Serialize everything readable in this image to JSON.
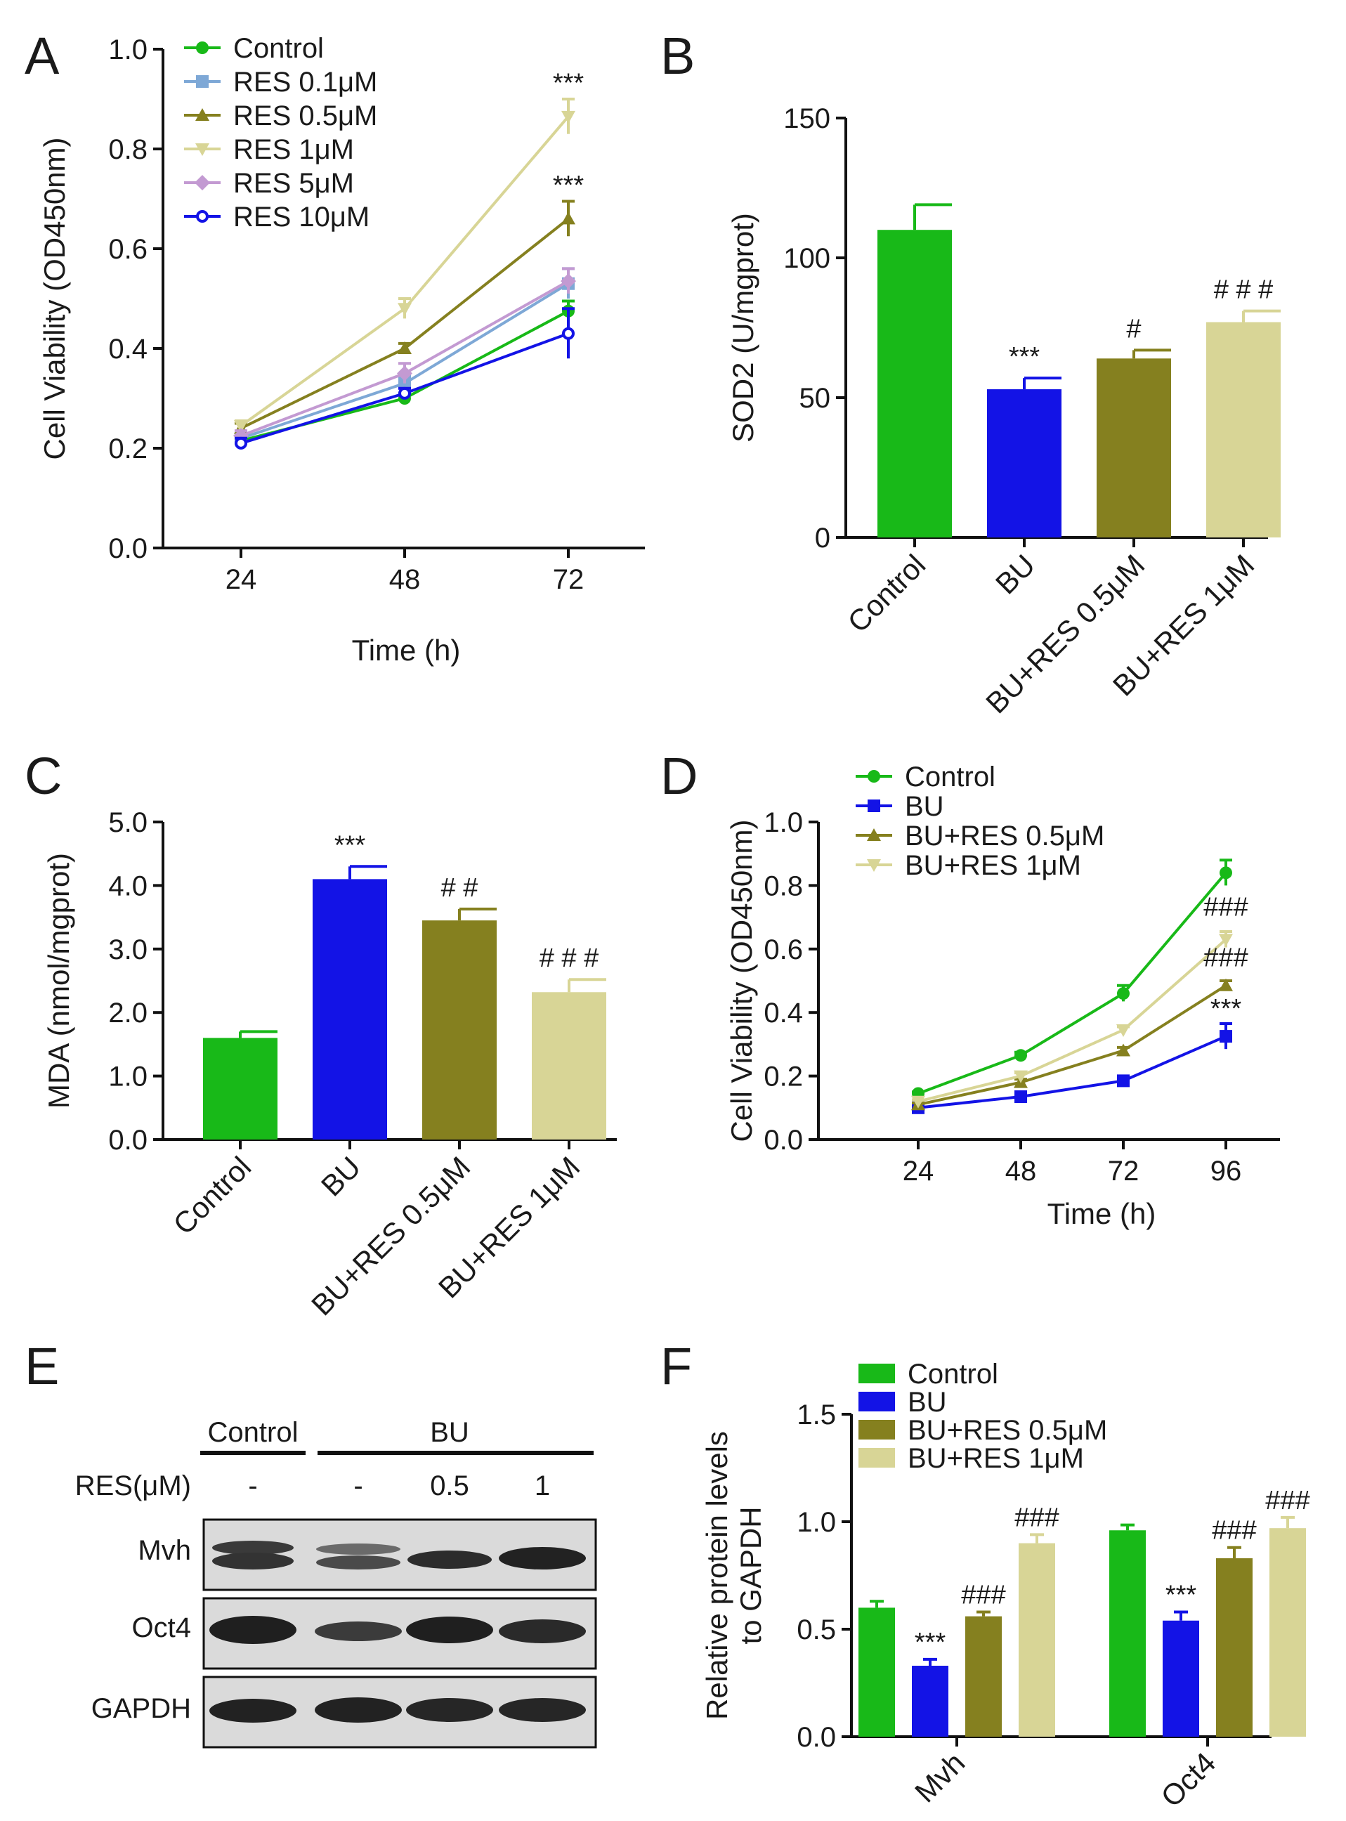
{
  "panels": {
    "A": "A",
    "B": "B",
    "C": "C",
    "D": "D",
    "E": "E",
    "F": "F"
  },
  "colors": {
    "green": "#18b918",
    "blue": "#1313e6",
    "olive": "#85801f",
    "khaki": "#d8d596",
    "steel": "#7ea8d6",
    "lilac": "#c39ad2"
  },
  "chart_data": [
    {
      "id": "A",
      "type": "line",
      "xlabel": "Time (h)",
      "ylabel": "Cell Viability (OD450nm)",
      "x": [
        24,
        48,
        72
      ],
      "ylim": [
        0.0,
        1.0
      ],
      "yticks": [
        "0.0",
        "0.2",
        "0.4",
        "0.6",
        "0.8",
        "1.0"
      ],
      "series": [
        {
          "name": "Control",
          "marker": "circle",
          "color": "#18b918",
          "values": [
            0.215,
            0.3,
            0.475
          ],
          "err": [
            0.01,
            0.01,
            0.02
          ]
        },
        {
          "name": "RES 0.1μM",
          "marker": "square",
          "color": "#7ea8d6",
          "values": [
            0.22,
            0.33,
            0.53
          ],
          "err": [
            0.01,
            0.015,
            0.03
          ]
        },
        {
          "name": "RES 0.5μM",
          "marker": "triangle-up",
          "color": "#85801f",
          "values": [
            0.24,
            0.4,
            0.66
          ],
          "err": [
            0.01,
            0.01,
            0.035
          ]
        },
        {
          "name": "RES 1μM",
          "marker": "triangle-down",
          "color": "#d8d596",
          "values": [
            0.245,
            0.48,
            0.865
          ],
          "err": [
            0.01,
            0.02,
            0.035
          ]
        },
        {
          "name": "RES 5μM",
          "marker": "diamond",
          "color": "#c39ad2",
          "values": [
            0.225,
            0.35,
            0.535
          ],
          "err": [
            0.01,
            0.02,
            0.025
          ]
        },
        {
          "name": "RES 10μM",
          "marker": "open-circle",
          "color": "#1313e6",
          "values": [
            0.21,
            0.31,
            0.43
          ],
          "err": [
            0.01,
            0.01,
            0.05
          ]
        }
      ],
      "annotations": [
        {
          "text": "***",
          "x": 72,
          "y": 0.915
        },
        {
          "text": "***",
          "x": 72,
          "y": 0.71
        }
      ]
    },
    {
      "id": "B",
      "type": "bar",
      "ylabel": "SOD2 (U/mgprot)",
      "categories": [
        "Control",
        "BU",
        "BU+RES 0.5μM",
        "BU+RES 1μM"
      ],
      "values": [
        110,
        53,
        64,
        77
      ],
      "err": [
        9,
        4,
        3,
        4
      ],
      "colors": [
        "#18b918",
        "#1313e6",
        "#85801f",
        "#d8d596"
      ],
      "ylim": [
        0,
        150
      ],
      "yticks": [
        "0",
        "50",
        "100",
        "150"
      ],
      "annotations": [
        "",
        "***",
        "#",
        "# # #"
      ]
    },
    {
      "id": "C",
      "type": "bar",
      "ylabel": "MDA (nmol/mgprot)",
      "categories": [
        "Control",
        "BU",
        "BU+RES 0.5μM",
        "BU+RES 1μM"
      ],
      "values": [
        1.6,
        4.1,
        3.45,
        2.32
      ],
      "err": [
        0.1,
        0.2,
        0.18,
        0.2
      ],
      "colors": [
        "#18b918",
        "#1313e6",
        "#85801f",
        "#d8d596"
      ],
      "ylim": [
        0,
        5
      ],
      "yticks": [
        "0.0",
        "1.0",
        "2.0",
        "3.0",
        "4.0",
        "5.0"
      ],
      "annotations": [
        "",
        "***",
        "# #",
        "# # #"
      ]
    },
    {
      "id": "D",
      "type": "line",
      "xlabel": "Time (h)",
      "ylabel": "Cell Viability (OD450nm)",
      "x": [
        24,
        48,
        72,
        96
      ],
      "ylim": [
        0.0,
        1.0
      ],
      "yticks": [
        "0.0",
        "0.2",
        "0.4",
        "0.6",
        "0.8",
        "1.0"
      ],
      "series": [
        {
          "name": "Control",
          "marker": "circle",
          "color": "#18b918",
          "values": [
            0.145,
            0.265,
            0.46,
            0.84
          ],
          "err": [
            0.005,
            0.01,
            0.025,
            0.04
          ]
        },
        {
          "name": "BU",
          "marker": "square",
          "color": "#1313e6",
          "values": [
            0.1,
            0.135,
            0.185,
            0.325
          ],
          "err": [
            0.005,
            0.005,
            0.015,
            0.04
          ]
        },
        {
          "name": "BU+RES 0.5μM",
          "marker": "triangle-up",
          "color": "#85801f",
          "values": [
            0.11,
            0.18,
            0.28,
            0.485
          ],
          "err": [
            0.005,
            0.01,
            0.01,
            0.015
          ]
        },
        {
          "name": "BU+RES 1μM",
          "marker": "triangle-down",
          "color": "#d8d596",
          "values": [
            0.12,
            0.2,
            0.345,
            0.63
          ],
          "err": [
            0.005,
            0.01,
            0.01,
            0.025
          ]
        }
      ],
      "annotations": [
        {
          "text": "###",
          "x": 96,
          "y": 0.705
        },
        {
          "text": "###",
          "x": 96,
          "y": 0.545
        },
        {
          "text": "***",
          "x": 96,
          "y": 0.385
        }
      ]
    },
    {
      "id": "F",
      "type": "bar",
      "ylabel": "Relative protein levels to GAPDH",
      "ylabel_lines": [
        "Relative protein levels",
        "to GAPDH"
      ],
      "categories": [
        "Mvh",
        "Oct4"
      ],
      "series": [
        {
          "name": "Control",
          "color": "#18b918",
          "values": [
            0.6,
            0.96
          ],
          "err": [
            0.03,
            0.025
          ]
        },
        {
          "name": "BU",
          "color": "#1313e6",
          "values": [
            0.33,
            0.54
          ],
          "err": [
            0.03,
            0.04
          ]
        },
        {
          "name": "BU+RES 0.5μM",
          "color": "#85801f",
          "values": [
            0.56,
            0.83
          ],
          "err": [
            0.02,
            0.05
          ]
        },
        {
          "name": "BU+RES 1μM",
          "color": "#d8d596",
          "values": [
            0.9,
            0.97
          ],
          "err": [
            0.04,
            0.05
          ]
        }
      ],
      "ylim": [
        0,
        1.5
      ],
      "yticks": [
        "0.0",
        "0.5",
        "1.0",
        "1.5"
      ],
      "annotations": [
        [
          "",
          "***",
          "###",
          "###"
        ],
        [
          "",
          "***",
          "###",
          "###"
        ]
      ]
    }
  ],
  "western": {
    "group_control": "Control",
    "group_bu": "BU",
    "res_label": "RES(μM)",
    "res_values": [
      "-",
      "-",
      "0.5",
      "1"
    ],
    "rows": [
      "Mvh",
      "Oct4",
      "GAPDH"
    ]
  }
}
